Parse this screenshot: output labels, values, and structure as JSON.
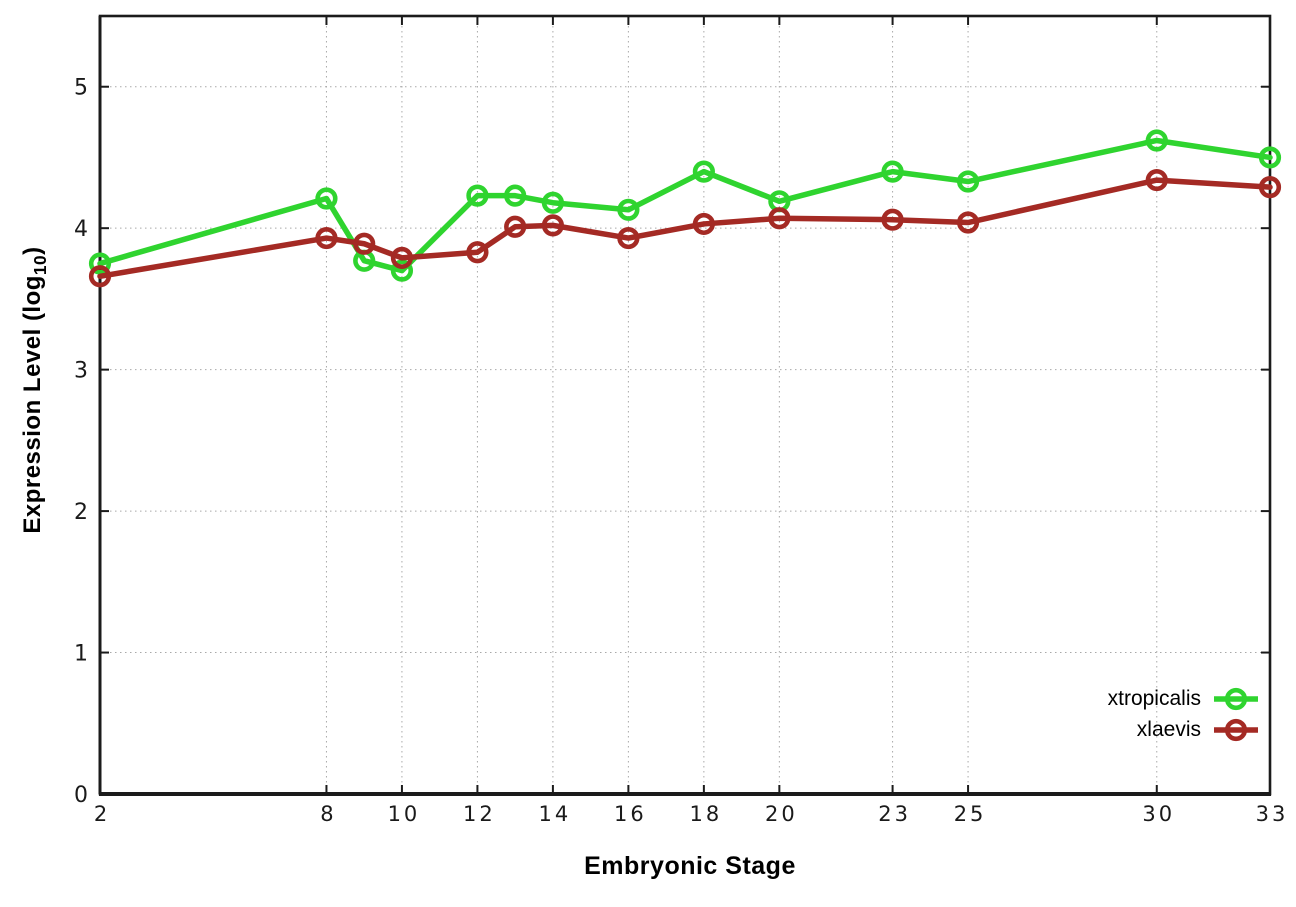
{
  "chart_data": {
    "type": "line",
    "title": "",
    "xlabel": "Embryonic Stage",
    "ylabel": "Expression Level (log10)",
    "ylabel_parts": {
      "prefix": "Expression Level (log",
      "sub": "10",
      "suffix": ")"
    },
    "x": [
      2,
      8,
      9,
      10,
      12,
      13,
      14,
      16,
      18,
      20,
      23,
      25,
      30,
      33
    ],
    "series": [
      {
        "name": "xtropicalis",
        "color": "#2fd42f",
        "values": [
          3.75,
          4.21,
          3.77,
          3.7,
          4.23,
          4.23,
          4.18,
          4.13,
          4.4,
          4.19,
          4.4,
          4.33,
          4.62,
          4.5
        ]
      },
      {
        "name": "xlaevis",
        "color": "#a42a24",
        "values": [
          3.66,
          3.93,
          3.89,
          3.79,
          3.83,
          4.01,
          4.02,
          3.93,
          4.03,
          4.07,
          4.06,
          4.04,
          4.34,
          4.29
        ]
      }
    ],
    "xtick_labels": [
      "2",
      "8",
      "10",
      "12",
      "14",
      "16",
      "18",
      "20",
      "23",
      "25",
      "30",
      "33"
    ],
    "xtick_values": [
      2,
      8,
      10,
      12,
      14,
      16,
      18,
      20,
      23,
      25,
      30,
      33
    ],
    "ytick_labels": [
      "0",
      "1",
      "2",
      "3",
      "4",
      "5"
    ],
    "ytick_values": [
      0,
      1,
      2,
      3,
      4,
      5
    ],
    "xlim": [
      2,
      33
    ],
    "ylim": [
      0,
      5.5
    ],
    "grid": true,
    "marker": "open-circle",
    "legend": {
      "position": "inside-bottom-right",
      "entries": [
        {
          "label": "xtropicalis",
          "color": "#2fd42f"
        },
        {
          "label": "xlaevis",
          "color": "#a42a24"
        }
      ]
    },
    "colors": {
      "axis": "#1b1b1b",
      "grid": "#a9a9a9",
      "background": "#ffffff",
      "tick_text": "#1a1a1a"
    }
  }
}
